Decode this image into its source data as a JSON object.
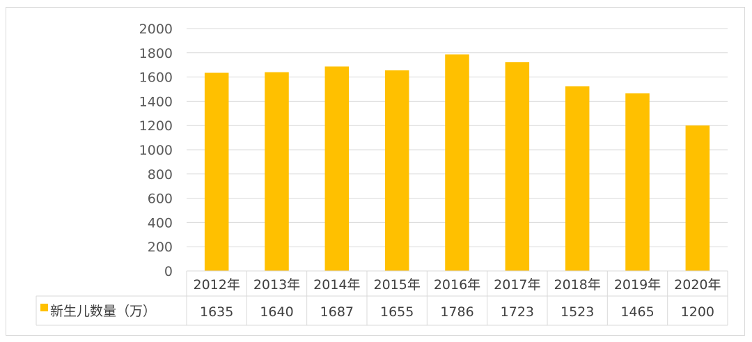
{
  "chart_data": {
    "type": "bar",
    "categories": [
      "2012年",
      "2013年",
      "2014年",
      "2015年",
      "2016年",
      "2017年",
      "2018年",
      "2019年",
      "2020年"
    ],
    "series": [
      {
        "name": "新生儿数量（万）",
        "values": [
          1635,
          1640,
          1687,
          1655,
          1786,
          1723,
          1523,
          1465,
          1200
        ],
        "color": "#FFC000"
      }
    ],
    "yticks": [
      "0",
      "200",
      "400",
      "600",
      "800",
      "1000",
      "1200",
      "1400",
      "1600",
      "1800",
      "2000"
    ],
    "ylim": [
      0,
      2000
    ],
    "grid": true,
    "data_table": true,
    "title": "",
    "xlabel": "",
    "ylabel": ""
  },
  "colors": {
    "bar": "#FFC000",
    "grid": "#d9d9d9",
    "border": "#d9d9d9"
  }
}
